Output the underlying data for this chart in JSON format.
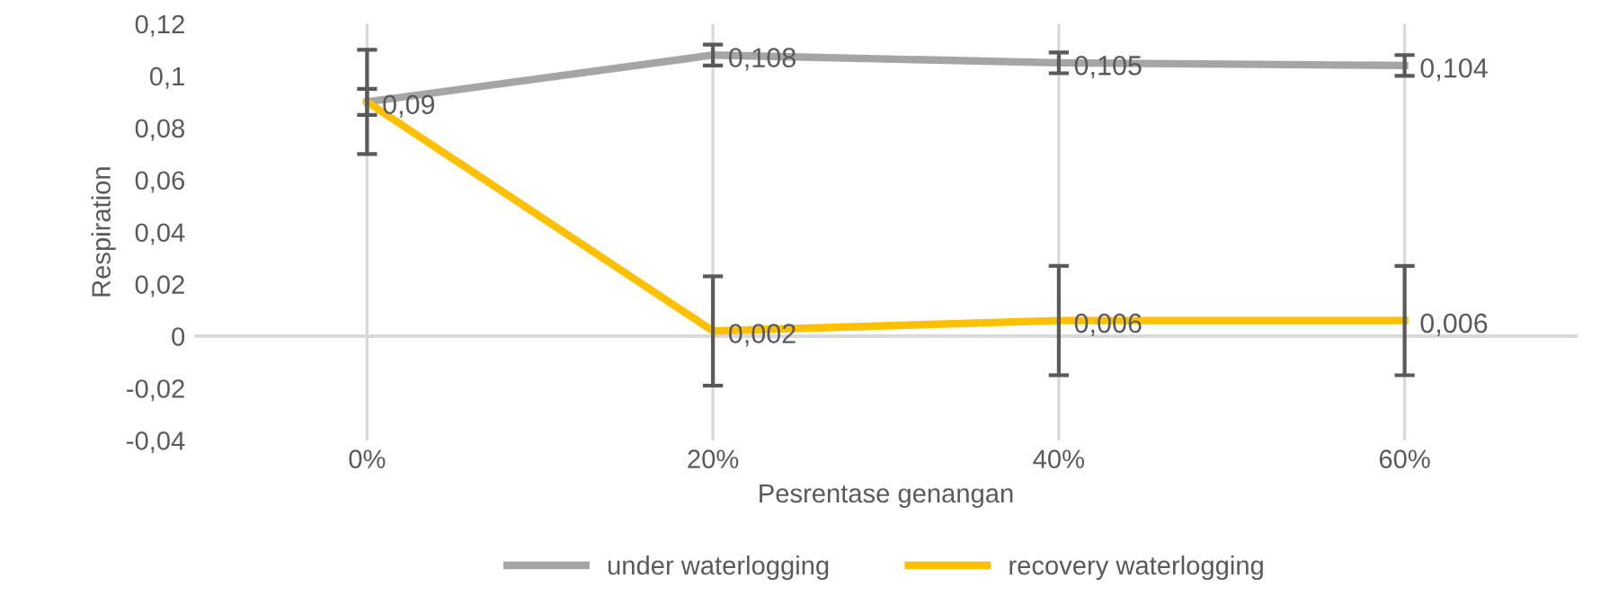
{
  "chart_data": {
    "type": "line",
    "xlabel": "Pesrentase genangan",
    "ylabel": "Respiration",
    "categories": [
      "0%",
      "20%",
      "40%",
      "60%"
    ],
    "series": [
      {
        "name": "under waterlogging",
        "color": "#a5a5a5",
        "values": [
          0.09,
          0.108,
          0.105,
          0.104
        ],
        "errors": [
          0.02,
          0.004,
          0.004,
          0.004
        ],
        "value_labels": [
          "0,09",
          "0,108",
          "0,105",
          "0,104"
        ]
      },
      {
        "name": "recovery waterlogging",
        "color": "#ffc000",
        "values": [
          0.09,
          0.002,
          0.006,
          0.006
        ],
        "errors": [
          0.005,
          0.021,
          0.021,
          0.021
        ],
        "value_labels": [
          null,
          "0,002",
          "0,006",
          "0,006"
        ]
      }
    ],
    "ylim": [
      -0.04,
      0.12
    ],
    "yticks": [
      {
        "value": -0.04,
        "label": "-0,04"
      },
      {
        "value": -0.02,
        "label": "-0,02"
      },
      {
        "value": 0,
        "label": "0"
      },
      {
        "value": 0.02,
        "label": "0,02"
      },
      {
        "value": 0.04,
        "label": "0,04"
      },
      {
        "value": 0.06,
        "label": "0,06"
      },
      {
        "value": 0.08,
        "label": "0,08"
      },
      {
        "value": 0.1,
        "label": "0,1"
      },
      {
        "value": 0.12,
        "label": "0,12"
      }
    ],
    "grid": "x",
    "legend": "bottom",
    "marker": "none",
    "line_style": "solid"
  }
}
